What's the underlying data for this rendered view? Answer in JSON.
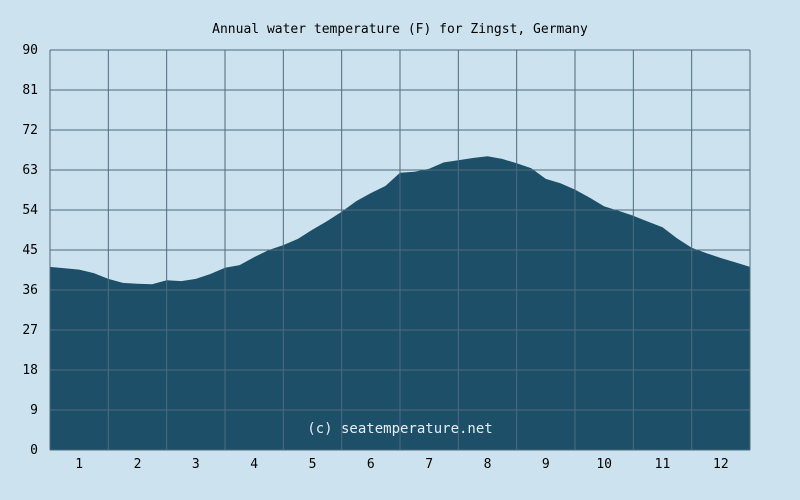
{
  "chart_data": {
    "type": "area",
    "title": "Annual water temperature (F) for Zingst, Germany",
    "watermark": "(c) seatemperature.net",
    "xlabel": "",
    "ylabel": "",
    "ylim": [
      0,
      90
    ],
    "xlim": [
      0.5,
      12.5
    ],
    "y_ticks": [
      "0",
      "9",
      "18",
      "27",
      "36",
      "45",
      "54",
      "63",
      "72",
      "81",
      "90"
    ],
    "x_ticks": [
      "1",
      "2",
      "3",
      "4",
      "5",
      "6",
      "7",
      "8",
      "9",
      "10",
      "11",
      "12"
    ],
    "grid": true,
    "colors": {
      "background": "#cce2ee",
      "plot_background": "#cce2ee",
      "area": "#1e4f68",
      "grid": "#4d6b7f"
    },
    "series": [
      {
        "x": [
          0.5,
          0.75,
          1.0,
          1.25,
          1.5,
          1.75,
          2.0,
          2.25,
          2.5,
          2.75,
          3.0,
          3.25,
          3.5,
          3.75,
          4.0,
          4.25,
          4.5,
          4.75,
          5.0,
          5.25,
          5.5,
          5.75,
          6.0,
          6.25,
          6.5,
          6.75,
          7.0,
          7.25,
          7.5,
          7.75,
          8.0,
          8.25,
          8.5,
          8.75,
          9.0,
          9.25,
          9.5,
          9.75,
          10.0,
          10.25,
          10.5,
          10.75,
          11.0,
          11.25,
          11.5,
          11.75,
          12.0,
          12.25,
          12.5
        ],
        "values": [
          41.2,
          40.9,
          40.6,
          39.8,
          38.5,
          37.6,
          37.4,
          37.3,
          38.2,
          38.0,
          38.5,
          39.6,
          41.0,
          41.6,
          43.4,
          45.0,
          46.1,
          47.5,
          49.6,
          51.5,
          53.6,
          56.0,
          57.8,
          59.4,
          62.4,
          62.6,
          63.3,
          64.7,
          65.2,
          65.7,
          66.1,
          65.5,
          64.5,
          63.4,
          61.0,
          60.0,
          58.6,
          56.8,
          54.8,
          53.8,
          52.7,
          51.4,
          50.1,
          47.6,
          45.5,
          44.3,
          43.2,
          42.2,
          41.2
        ]
      }
    ]
  }
}
